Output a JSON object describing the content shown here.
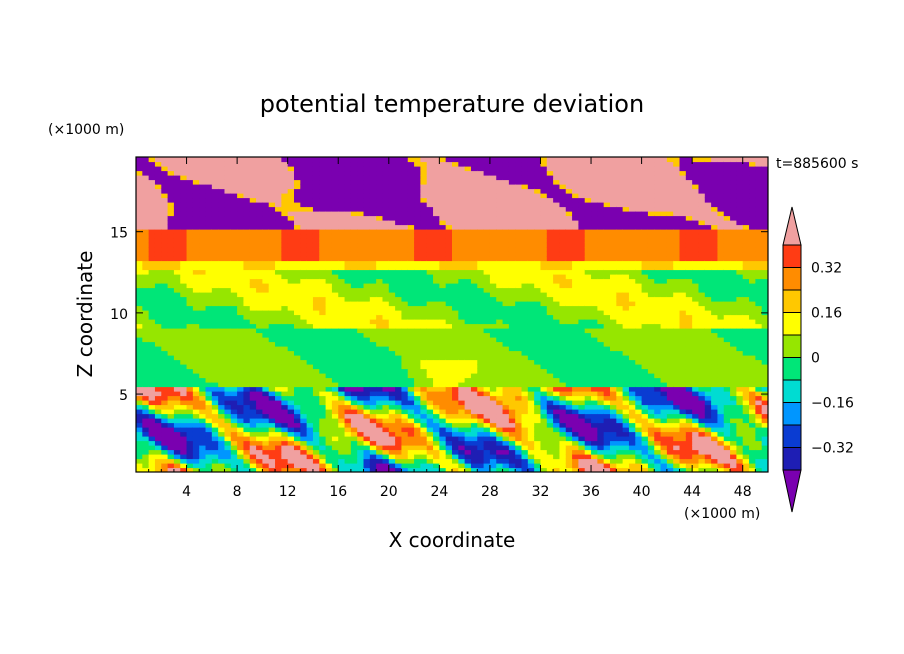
{
  "chart_data": {
    "type": "heatmap",
    "title": "potential temperature deviation",
    "xlabel": "X coordinate",
    "ylabel": "Z coordinate",
    "x_unit_label": "(×1000 m)",
    "y_unit_label": "(×1000 m)",
    "time_label": "t=885600 s",
    "xlim": [
      0,
      50
    ],
    "ylim": [
      0.2,
      19.6
    ],
    "x_ticks": [
      4,
      8,
      12,
      16,
      20,
      24,
      28,
      32,
      36,
      40,
      44,
      48
    ],
    "x_tick_labels": [
      "4",
      "8",
      "12",
      "16",
      "20",
      "24",
      "28",
      "32",
      "36",
      "40",
      "44",
      "48"
    ],
    "y_ticks": [
      5,
      10,
      15
    ],
    "y_tick_labels": [
      "5",
      "10",
      "15"
    ],
    "colorbar": {
      "levels": [
        -0.4,
        -0.32,
        -0.24,
        -0.16,
        -0.08,
        0,
        0.08,
        0.16,
        0.24,
        0.32,
        0.4
      ],
      "colors": [
        "#7a00b0",
        "#1e1eb4",
        "#0a3cd2",
        "#0096ff",
        "#00dcd2",
        "#00e678",
        "#96e600",
        "#ffff00",
        "#ffc800",
        "#ff8c00",
        "#ff3c14",
        "#f0a0a0"
      ],
      "tick_values": [
        -0.32,
        -0.16,
        0,
        0.16,
        0.32
      ],
      "tick_labels": [
        "−0.32",
        "−0.16",
        "0",
        "0.16",
        "0.32"
      ]
    },
    "layers": [
      {
        "z_range": [
          15,
          19.6
        ],
        "description_values": "mix of -0.4 and 0.4 extremes"
      },
      {
        "z_range": [
          13,
          15
        ],
        "value": 0.32
      },
      {
        "z_range": [
          9,
          13
        ],
        "value": 0.08
      },
      {
        "z_range": [
          5.5,
          9
        ],
        "value": 0
      },
      {
        "z_range": [
          0.2,
          5.5
        ],
        "description_values": "turbulent, -0.4 to 0.4"
      }
    ]
  }
}
